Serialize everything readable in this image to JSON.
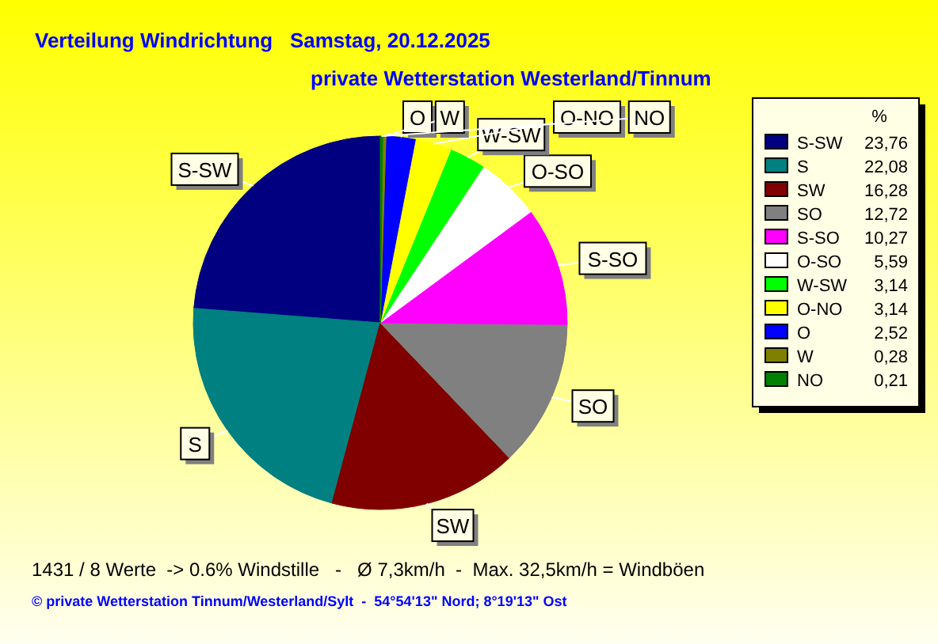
{
  "chart_data": {
    "type": "pie",
    "title": "Verteilung Windrichtung   Samstag, 20.12.2025",
    "subtitle": "private Wetterstation Westerland/Tinnum",
    "legend_title": "%",
    "legend": "right",
    "categories": [
      "S-SW",
      "S",
      "SW",
      "SO",
      "S-SO",
      "O-SO",
      "W-SW",
      "O-NO",
      "O",
      "W",
      "NO"
    ],
    "values": [
      23.76,
      22.08,
      16.28,
      12.72,
      10.27,
      5.59,
      3.14,
      3.14,
      2.52,
      0.28,
      0.21
    ],
    "value_labels": [
      "23,76",
      "22,08",
      "16,28",
      "12,72",
      "10,27",
      "5,59",
      "3,14",
      "3,14",
      "2,52",
      "0,28",
      "0,21"
    ],
    "colors": [
      "#000080",
      "#008080",
      "#800000",
      "#808080",
      "#ff00ff",
      "#ffffff",
      "#00ff00",
      "#ffff00",
      "#0000ff",
      "#808000",
      "#008000"
    ],
    "annotations": [
      "1431 / 8 Werte  -> 0.6% Windstille   -   Ø 7,3km/h  -  Max. 32,5km/h = Windböen",
      "© private Wetterstation Tinnum/Westerland/Sylt  -  54°54'13\" Nord; 8°19'13\" Ost"
    ]
  }
}
